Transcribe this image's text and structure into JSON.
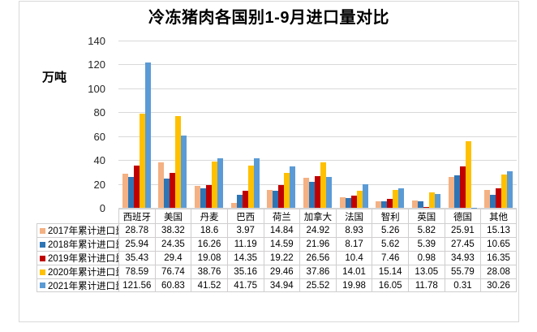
{
  "chart_data": {
    "type": "bar",
    "title": "冷冻猪肉各国别1-9月进口量对比",
    "xlabel": "",
    "ylabel": "万吨",
    "ylim": [
      0,
      140
    ],
    "y_ticks": [
      140,
      120,
      100,
      80,
      60,
      40,
      20,
      0
    ],
    "grid": true,
    "legend_position": "left-of-data-table",
    "categories": [
      "西班牙",
      "美国",
      "丹麦",
      "巴西",
      "荷兰",
      "加拿大",
      "法国",
      "智利",
      "英国",
      "德国",
      "其他"
    ],
    "series": [
      {
        "name": "2017年累计进口量",
        "color": "#F4B183",
        "values": [
          28.78,
          38.32,
          18.6,
          3.97,
          14.84,
          24.92,
          8.93,
          5.26,
          5.82,
          25.91,
          15.13
        ]
      },
      {
        "name": "2018年累计进口量",
        "color": "#2E75B6",
        "values": [
          25.94,
          24.35,
          16.26,
          11.19,
          14.59,
          21.96,
          8.17,
          5.62,
          5.39,
          27.45,
          10.65
        ]
      },
      {
        "name": "2019年累计进口量",
        "color": "#C00000",
        "values": [
          35.43,
          29.4,
          19.08,
          14.35,
          19.22,
          26.56,
          10.4,
          7.46,
          0.98,
          34.93,
          16.35
        ]
      },
      {
        "name": "2020年累计进口量",
        "color": "#FFC000",
        "values": [
          78.59,
          76.74,
          38.76,
          35.16,
          29.46,
          37.86,
          14.01,
          15.14,
          13.05,
          55.79,
          28.08
        ]
      },
      {
        "name": "2021年累计进口量",
        "color": "#5B9BD5",
        "values": [
          121.56,
          60.83,
          41.52,
          41.75,
          34.94,
          25.52,
          19.98,
          16.05,
          11.78,
          0.31,
          30.26
        ]
      }
    ]
  },
  "colors": {
    "gridline": "#d9d9d9",
    "frame_border": "#d9d9d9",
    "table_border": "#d0cece",
    "text": "#000000"
  }
}
